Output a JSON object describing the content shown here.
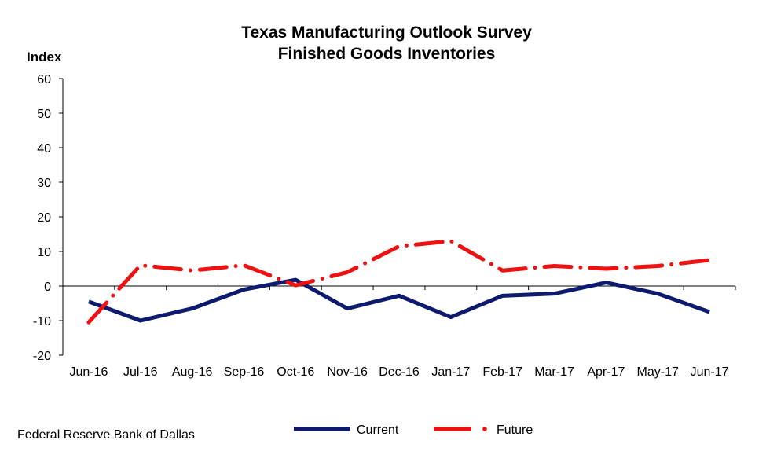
{
  "chart_data": {
    "type": "line",
    "title": "Texas Manufacturing Outlook Survey",
    "subtitle": "Finished Goods Inventories",
    "ylabel": "Index",
    "xlabel": "",
    "ylim": [
      -20,
      60
    ],
    "yticks": [
      60,
      50,
      40,
      30,
      20,
      10,
      0,
      -10,
      -20
    ],
    "categories": [
      "Jun-16",
      "Jul-16",
      "Aug-16",
      "Sep-16",
      "Oct-16",
      "Nov-16",
      "Dec-16",
      "Jan-17",
      "Feb-17",
      "Mar-17",
      "Apr-17",
      "May-17",
      "Jun-17"
    ],
    "series": [
      {
        "name": "Current",
        "color": "#0d1a6e",
        "style": "solid",
        "values": [
          -4.5,
          -10.0,
          -6.5,
          -1.0,
          1.8,
          -6.5,
          -2.8,
          -9.0,
          -2.8,
          -2.2,
          1.0,
          -2.2,
          -7.5
        ]
      },
      {
        "name": "Future",
        "color": "#ee1111",
        "style": "dash-dot",
        "values": [
          -10.5,
          6.0,
          4.5,
          6.0,
          0.2,
          4.0,
          11.5,
          13.0,
          4.5,
          5.8,
          5.0,
          5.8,
          7.5
        ]
      }
    ],
    "grid": false,
    "legend": "bottom-center"
  },
  "source": "Federal Reserve Bank of Dallas"
}
